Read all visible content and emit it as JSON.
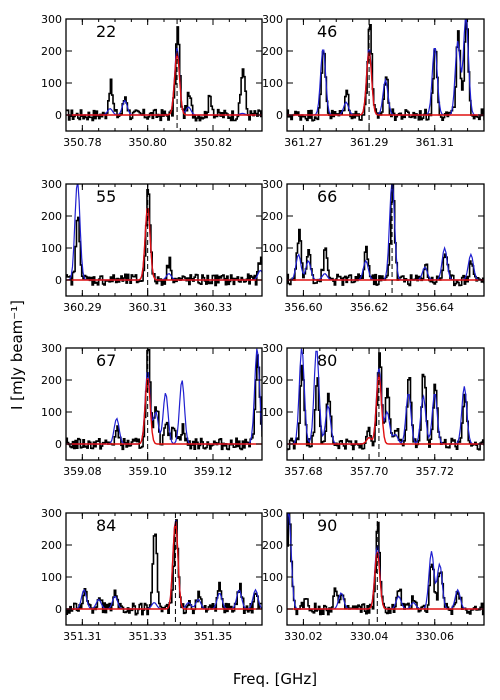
{
  "figure": {
    "ylabel": "I [mJy beam⁻¹]",
    "xlabel": "Freq. [GHz]"
  },
  "colors": {
    "observed": "#000000",
    "model_total": "#2020d0",
    "model_line": "#e01010"
  },
  "chart_data": [
    {
      "type": "line",
      "panel": "22",
      "xlim": [
        350.775,
        350.835
      ],
      "ylim": [
        -50,
        300
      ],
      "x_ticks": [
        "350.78",
        "350.80",
        "350.82"
      ],
      "x_tick_values": [
        350.78,
        350.8,
        350.82
      ],
      "y_ticks": [
        "0",
        "100",
        "200",
        "300"
      ],
      "y_tick_values": [
        0,
        100,
        200,
        300
      ],
      "line_center": 350.809,
      "peaks": [
        {
          "x": 350.7885,
          "obs": 95,
          "total": 20,
          "line": 0
        },
        {
          "x": 350.793,
          "obs": 60,
          "total": 45,
          "line": 0
        },
        {
          "x": 350.809,
          "obs": 270,
          "total": 210,
          "line": 195
        },
        {
          "x": 350.8125,
          "obs": 60,
          "total": 25,
          "line": 0
        },
        {
          "x": 350.819,
          "obs": 55,
          "total": 0,
          "line": 0
        },
        {
          "x": 350.829,
          "obs": 150,
          "total": 5,
          "line": 0
        }
      ]
    },
    {
      "type": "line",
      "panel": "46",
      "xlim": [
        361.265,
        361.325
      ],
      "ylim": [
        -50,
        300
      ],
      "x_ticks": [
        "361.27",
        "361.29",
        "361.31"
      ],
      "x_tick_values": [
        361.27,
        361.29,
        361.31
      ],
      "y_ticks": [
        "0",
        "100",
        "200",
        "300"
      ],
      "y_tick_values": [
        0,
        100,
        200,
        300
      ],
      "line_center": 361.29,
      "peaks": [
        {
          "x": 361.276,
          "obs": 205,
          "total": 210,
          "line": 0
        },
        {
          "x": 361.283,
          "obs": 70,
          "total": 40,
          "line": 0
        },
        {
          "x": 361.29,
          "obs": 290,
          "total": 210,
          "line": 200
        },
        {
          "x": 361.295,
          "obs": 120,
          "total": 110,
          "line": 0
        },
        {
          "x": 361.31,
          "obs": 210,
          "total": 215,
          "line": 0
        },
        {
          "x": 361.317,
          "obs": 250,
          "total": 230,
          "line": 0
        },
        {
          "x": 361.3195,
          "obs": 300,
          "total": 310,
          "line": 0
        }
      ]
    },
    {
      "type": "line",
      "panel": "55",
      "xlim": [
        360.285,
        360.345
      ],
      "ylim": [
        -50,
        300
      ],
      "x_ticks": [
        "360.29",
        "360.31",
        "360.33"
      ],
      "x_tick_values": [
        360.29,
        360.31,
        360.33
      ],
      "y_ticks": [
        "0",
        "100",
        "200",
        "300"
      ],
      "y_tick_values": [
        0,
        100,
        200,
        300
      ],
      "line_center": 360.31,
      "peaks": [
        {
          "x": 360.2885,
          "obs": 195,
          "total": 310,
          "line": 0
        },
        {
          "x": 360.31,
          "obs": 300,
          "total": 230,
          "line": 230
        },
        {
          "x": 360.3165,
          "obs": 60,
          "total": 20,
          "line": 0
        },
        {
          "x": 360.3445,
          "obs": 70,
          "total": 30,
          "line": 0
        }
      ]
    },
    {
      "type": "line",
      "panel": "66",
      "xlim": [
        356.595,
        356.655
      ],
      "ylim": [
        -50,
        300
      ],
      "x_ticks": [
        "356.60",
        "356.62",
        "356.64"
      ],
      "x_tick_values": [
        356.6,
        356.62,
        356.64
      ],
      "y_ticks": [
        "0",
        "100",
        "200",
        "300"
      ],
      "y_tick_values": [
        0,
        100,
        200,
        300
      ],
      "line_center": 356.627,
      "peaks": [
        {
          "x": 356.5985,
          "obs": 150,
          "total": 80,
          "line": 0
        },
        {
          "x": 356.6015,
          "obs": 100,
          "total": 60,
          "line": 0
        },
        {
          "x": 356.6065,
          "obs": 90,
          "total": 20,
          "line": 0
        },
        {
          "x": 356.619,
          "obs": 100,
          "total": 60,
          "line": 0
        },
        {
          "x": 356.627,
          "obs": 310,
          "total": 310,
          "line": 0
        },
        {
          "x": 356.637,
          "obs": 50,
          "total": 40,
          "line": 0
        },
        {
          "x": 356.643,
          "obs": 90,
          "total": 100,
          "line": 0
        },
        {
          "x": 356.651,
          "obs": 60,
          "total": 80,
          "line": 0
        }
      ]
    },
    {
      "type": "line",
      "panel": "67",
      "xlim": [
        359.075,
        359.135
      ],
      "ylim": [
        -50,
        300
      ],
      "x_ticks": [
        "359.08",
        "359.10",
        "359.12"
      ],
      "x_tick_values": [
        359.08,
        359.1,
        359.12
      ],
      "y_ticks": [
        "0",
        "100",
        "200",
        "300"
      ],
      "y_tick_values": [
        0,
        100,
        200,
        300
      ],
      "line_center": 359.1,
      "peaks": [
        {
          "x": 359.0905,
          "obs": 40,
          "total": 80,
          "line": 0
        },
        {
          "x": 359.1,
          "obs": 300,
          "total": 230,
          "line": 210
        },
        {
          "x": 359.1025,
          "obs": 120,
          "total": 100,
          "line": 0
        },
        {
          "x": 359.1055,
          "obs": 80,
          "total": 160,
          "line": 0
        },
        {
          "x": 359.108,
          "obs": 60,
          "total": 0,
          "line": 0
        },
        {
          "x": 359.1105,
          "obs": 50,
          "total": 200,
          "line": 0
        },
        {
          "x": 359.1335,
          "obs": 290,
          "total": 300,
          "line": 0
        }
      ]
    },
    {
      "type": "line",
      "panel": "80",
      "xlim": [
        357.675,
        357.735
      ],
      "ylim": [
        -50,
        300
      ],
      "x_ticks": [
        "357.68",
        "357.70",
        "357.72"
      ],
      "x_tick_values": [
        357.68,
        357.7,
        357.72
      ],
      "y_ticks": [
        "0",
        "100",
        "200",
        "300"
      ],
      "y_tick_values": [
        0,
        100,
        200,
        300
      ],
      "line_center": 357.703,
      "peaks": [
        {
          "x": 357.6795,
          "obs": 240,
          "total": 300,
          "line": 0
        },
        {
          "x": 357.684,
          "obs": 200,
          "total": 300,
          "line": 0
        },
        {
          "x": 357.6875,
          "obs": 150,
          "total": 120,
          "line": 0
        },
        {
          "x": 357.7,
          "obs": 40,
          "total": 20,
          "line": 20
        },
        {
          "x": 357.703,
          "obs": 300,
          "total": 240,
          "line": 220
        },
        {
          "x": 357.7055,
          "obs": 180,
          "total": 100,
          "line": 0
        },
        {
          "x": 357.708,
          "obs": 50,
          "total": 30,
          "line": 0
        },
        {
          "x": 357.712,
          "obs": 210,
          "total": 160,
          "line": 0
        },
        {
          "x": 357.7165,
          "obs": 230,
          "total": 150,
          "line": 0
        },
        {
          "x": 357.72,
          "obs": 190,
          "total": 160,
          "line": 0
        },
        {
          "x": 357.729,
          "obs": 160,
          "total": 180,
          "line": 0
        }
      ]
    },
    {
      "type": "line",
      "panel": "84",
      "xlim": [
        351.305,
        351.365
      ],
      "ylim": [
        -50,
        300
      ],
      "x_ticks": [
        "351.31",
        "351.33",
        "351.35"
      ],
      "x_tick_values": [
        351.31,
        351.33,
        351.35
      ],
      "y_ticks": [
        "0",
        "100",
        "200",
        "300"
      ],
      "y_tick_values": [
        0,
        100,
        200,
        300
      ],
      "line_center": 351.3385,
      "peaks": [
        {
          "x": 351.3105,
          "obs": 60,
          "total": 60,
          "line": 0
        },
        {
          "x": 351.315,
          "obs": 40,
          "total": 30,
          "line": 0
        },
        {
          "x": 351.32,
          "obs": 60,
          "total": 40,
          "line": 0
        },
        {
          "x": 351.332,
          "obs": 260,
          "total": 20,
          "line": 0
        },
        {
          "x": 351.3385,
          "obs": 270,
          "total": 280,
          "line": 275
        },
        {
          "x": 351.3425,
          "obs": 30,
          "total": 20,
          "line": 0
        },
        {
          "x": 351.3455,
          "obs": 40,
          "total": 30,
          "line": 0
        },
        {
          "x": 351.352,
          "obs": 70,
          "total": 50,
          "line": 0
        },
        {
          "x": 351.358,
          "obs": 70,
          "total": 60,
          "line": 0
        },
        {
          "x": 351.363,
          "obs": 40,
          "total": 60,
          "line": 0
        }
      ]
    },
    {
      "type": "line",
      "panel": "90",
      "xlim": [
        330.015,
        330.075
      ],
      "ylim": [
        -50,
        300
      ],
      "x_ticks": [
        "330.02",
        "330.04",
        "330.06"
      ],
      "x_tick_values": [
        330.02,
        330.04,
        330.06
      ],
      "y_ticks": [
        "0",
        "100",
        "200",
        "300"
      ],
      "y_tick_values": [
        0,
        100,
        200,
        300
      ],
      "line_center": 330.0425,
      "peaks": [
        {
          "x": 330.0155,
          "obs": 300,
          "total": 310,
          "line": 0
        },
        {
          "x": 330.0205,
          "obs": 40,
          "total": 0,
          "line": 0
        },
        {
          "x": 330.0295,
          "obs": 60,
          "total": 0,
          "line": 0
        },
        {
          "x": 330.0315,
          "obs": 30,
          "total": 50,
          "line": 0
        },
        {
          "x": 330.0425,
          "obs": 260,
          "total": 200,
          "line": 180
        },
        {
          "x": 330.049,
          "obs": 60,
          "total": 40,
          "line": 0
        },
        {
          "x": 330.0535,
          "obs": 40,
          "total": 20,
          "line": 0
        },
        {
          "x": 330.059,
          "obs": 150,
          "total": 180,
          "line": 0
        },
        {
          "x": 330.0615,
          "obs": 130,
          "total": 140,
          "line": 0
        },
        {
          "x": 330.067,
          "obs": 60,
          "total": 60,
          "line": 0
        }
      ]
    }
  ]
}
